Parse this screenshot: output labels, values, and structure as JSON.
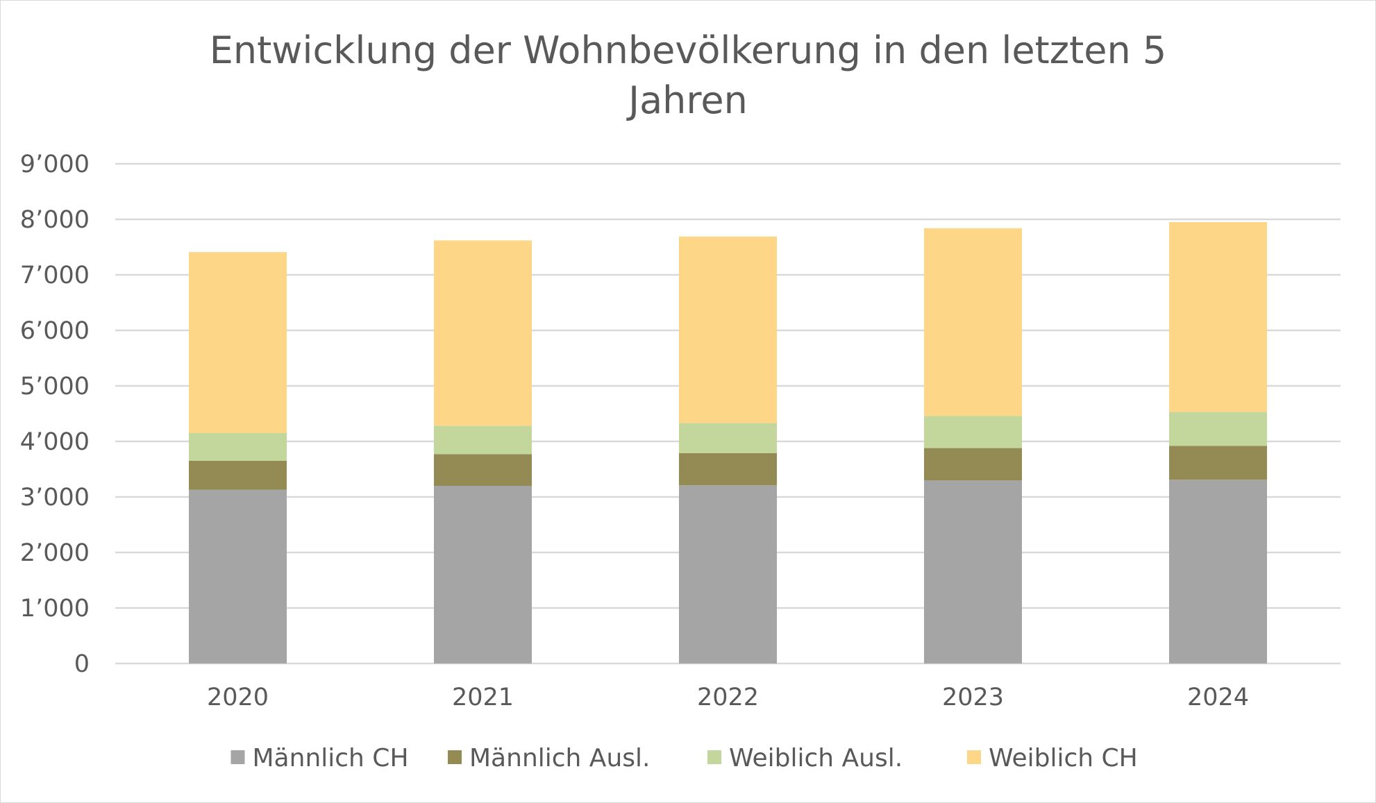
{
  "chart_data": {
    "type": "bar",
    "stacked": true,
    "title": "Entwicklung der Wohnbevölkerung in den letzten 5 Jahren",
    "title_lines": [
      "Entwicklung der Wohnbevölkerung in den letzten 5",
      "Jahren"
    ],
    "categories": [
      "2020",
      "2021",
      "2022",
      "2023",
      "2024"
    ],
    "series": [
      {
        "name": "Männlich CH",
        "color": "#a5a5a5",
        "values": [
          3130,
          3200,
          3210,
          3300,
          3310
        ]
      },
      {
        "name": "Männlich Ausl.",
        "color": "#948a54",
        "values": [
          520,
          570,
          580,
          580,
          610
        ]
      },
      {
        "name": "Weiblich Ausl.",
        "color": "#c3d69b",
        "values": [
          500,
          510,
          540,
          580,
          610
        ]
      },
      {
        "name": "Weiblich CH",
        "color": "#fed687",
        "values": [
          3260,
          3340,
          3360,
          3380,
          3420
        ]
      }
    ],
    "xlabel": "",
    "ylabel": "",
    "ylim": [
      0,
      9000
    ],
    "yticks": [
      0,
      1000,
      2000,
      3000,
      4000,
      5000,
      6000,
      7000,
      8000,
      9000
    ],
    "ytick_labels": [
      "0",
      "1’000",
      "2’000",
      "3’000",
      "4’000",
      "5’000",
      "6’000",
      "7’000",
      "8’000",
      "9’000"
    ],
    "grid": true,
    "legend_position": "bottom",
    "gridline_color": "#d9d9d9",
    "text_color": "#595959"
  }
}
